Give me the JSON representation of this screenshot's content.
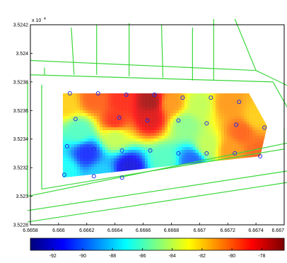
{
  "chart_data": {
    "type": "heatmap",
    "title": "",
    "xlabel": "",
    "ylabel": "",
    "x_ticks": [
      "6.6658",
      "6.666",
      "6.6662",
      "6.6664",
      "6.6666",
      "6.6668",
      "6.667",
      "6.6672",
      "6.6674",
      "6.667"
    ],
    "y_ticks": [
      "3.5242",
      "3.524",
      "3.5238",
      "3.5236",
      "3.5234",
      "3.5232",
      "3.523",
      "3.5228"
    ],
    "y_multiplier_base": "x 10",
    "y_multiplier_exp": "4",
    "xlim": [
      6.6658,
      6.6676
    ],
    "ylim": [
      3.5228,
      3.5242
    ],
    "colorbar": {
      "ticks": [
        "-92",
        "-90",
        "-88",
        "-86",
        "-84",
        "-82",
        "-80",
        "-78"
      ],
      "range": [
        -93.5,
        -76.5
      ]
    },
    "heatmap_region": [
      [
        6.66603,
        3.52372
      ],
      [
        6.66735,
        3.52372
      ],
      [
        6.66748,
        3.52349
      ],
      [
        6.66743,
        3.52328
      ],
      [
        6.66603,
        3.52313
      ]
    ],
    "value_field_points": [
      {
        "x": 6.66605,
        "y": 3.52365,
        "value": -82
      },
      {
        "x": 6.66625,
        "y": 3.52368,
        "value": -80
      },
      {
        "x": 6.66645,
        "y": 3.52367,
        "value": -79
      },
      {
        "x": 6.66665,
        "y": 3.52366,
        "value": -77
      },
      {
        "x": 6.66665,
        "y": 3.52355,
        "value": -78
      },
      {
        "x": 6.6668,
        "y": 3.52365,
        "value": -81
      },
      {
        "x": 6.667,
        "y": 3.52364,
        "value": -84
      },
      {
        "x": 6.6672,
        "y": 3.52365,
        "value": -81
      },
      {
        "x": 6.6674,
        "y": 3.52355,
        "value": -82
      },
      {
        "x": 6.6664,
        "y": 3.52352,
        "value": -79
      },
      {
        "x": 6.6664,
        "y": 3.52342,
        "value": -84
      },
      {
        "x": 6.66615,
        "y": 3.52345,
        "value": -86
      },
      {
        "x": 6.6662,
        "y": 3.5233,
        "value": -91
      },
      {
        "x": 6.66605,
        "y": 3.52318,
        "value": -87
      },
      {
        "x": 6.6663,
        "y": 3.52315,
        "value": -88
      },
      {
        "x": 6.6665,
        "y": 3.5232,
        "value": -92
      },
      {
        "x": 6.66675,
        "y": 3.52325,
        "value": -86
      },
      {
        "x": 6.66695,
        "y": 3.52325,
        "value": -90
      },
      {
        "x": 6.66705,
        "y": 3.52335,
        "value": -84
      },
      {
        "x": 6.66722,
        "y": 3.52332,
        "value": -81
      },
      {
        "x": 6.66742,
        "y": 3.5233,
        "value": -80
      },
      {
        "x": 6.6673,
        "y": 3.52345,
        "value": -80
      },
      {
        "x": 6.6669,
        "y": 3.5235,
        "value": -85
      }
    ],
    "sample_points": [
      [
        6.66608,
        3.52372
      ],
      [
        6.66628,
        3.52372
      ],
      [
        6.66648,
        3.52371
      ],
      [
        6.66668,
        3.52371
      ],
      [
        6.66688,
        3.52369
      ],
      [
        6.66708,
        3.52369
      ],
      [
        6.66728,
        3.52366
      ],
      [
        6.66612,
        3.52354
      ],
      [
        6.66643,
        3.52355
      ],
      [
        6.66663,
        3.52353
      ],
      [
        6.66685,
        3.52353
      ],
      [
        6.66705,
        3.52351
      ],
      [
        6.66726,
        3.5235
      ],
      [
        6.66746,
        3.52348
      ],
      [
        6.66606,
        3.52335
      ],
      [
        6.66625,
        3.52333
      ],
      [
        6.66645,
        3.52332
      ],
      [
        6.66665,
        3.52332
      ],
      [
        6.66685,
        3.5233
      ],
      [
        6.66705,
        3.5233
      ],
      [
        6.66725,
        3.5233
      ],
      [
        6.66743,
        3.52328
      ],
      [
        6.66604,
        3.52315
      ],
      [
        6.66625,
        3.52314
      ],
      [
        6.66645,
        3.52313
      ]
    ],
    "map_lines": [
      [
        [
          6.66609,
          3.52418
        ],
        [
          6.66611,
          3.52385
        ]
      ],
      [
        [
          6.66627,
          3.5242
        ],
        [
          6.66627,
          3.52385
        ]
      ],
      [
        [
          6.6665,
          3.52421
        ],
        [
          6.6665,
          3.52384
        ]
      ],
      [
        [
          6.66673,
          3.5242
        ],
        [
          6.66674,
          3.52383
        ]
      ],
      [
        [
          6.66695,
          3.52418
        ],
        [
          6.66695,
          3.52381
        ]
      ],
      [
        [
          6.6671,
          3.52424
        ],
        [
          6.6671,
          3.52381
        ]
      ],
      [
        [
          6.6659,
          3.5239
        ],
        [
          6.6659,
          3.52385
        ]
      ],
      [
        [
          6.6658,
          3.52385
        ],
        [
          6.66752,
          3.5238
        ]
      ],
      [
        [
          6.66752,
          3.5238
        ],
        [
          6.66775,
          3.5234
        ]
      ],
      [
        [
          6.66775,
          3.5234
        ],
        [
          6.66778,
          3.523
        ]
      ],
      [
        [
          6.66578,
          3.523
        ],
        [
          6.66776,
          3.5234
        ]
      ],
      [
        [
          6.66578,
          3.523
        ],
        [
          6.66578,
          3.5238
        ]
      ],
      [
        [
          6.66588,
          3.52378
        ],
        [
          6.66588,
          3.52305
        ]
      ],
      [
        [
          6.66588,
          3.52305
        ],
        [
          6.6676,
          3.52333
        ]
      ],
      [
        [
          6.6676,
          3.52333
        ],
        [
          6.6676,
          3.52348
        ]
      ],
      [
        [
          6.66578,
          3.5229
        ],
        [
          6.66778,
          3.5232
        ]
      ],
      [
        [
          6.66578,
          3.52282
        ],
        [
          6.66778,
          3.52312
        ]
      ],
      [
        [
          6.66725,
          3.52424
        ],
        [
          6.6674,
          3.52388
        ]
      ],
      [
        [
          6.6674,
          3.52388
        ],
        [
          6.66778,
          3.5237
        ]
      ],
      [
        [
          6.6658,
          3.52395
        ],
        [
          6.6674,
          3.52388
        ]
      ]
    ],
    "colors": {
      "map_lines": "#39d739",
      "sample_points": "#1e2ce8",
      "axis": "#000000",
      "figure_background": "#ffffff"
    }
  }
}
